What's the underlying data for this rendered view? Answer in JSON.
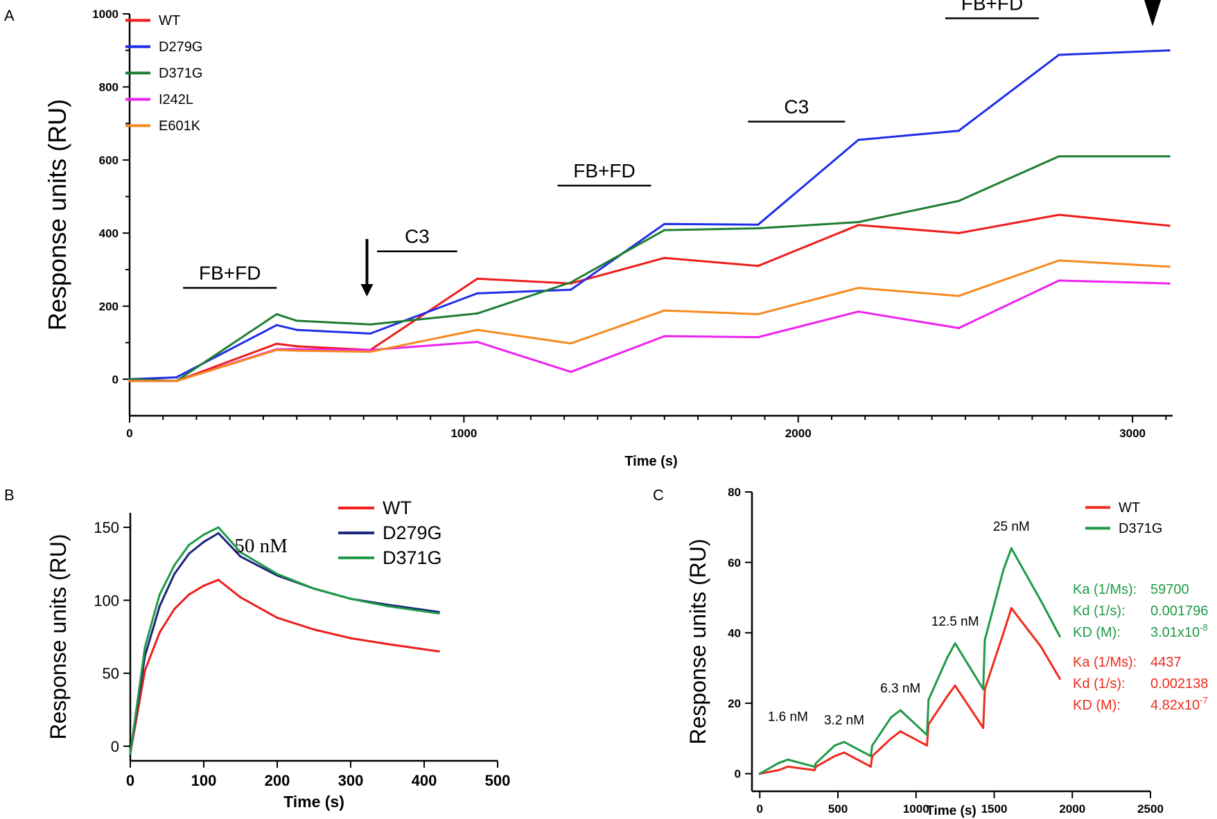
{
  "panels": [
    {
      "id": "A",
      "letter": "A",
      "chart_data": {
        "type": "line",
        "title": "",
        "xlabel": "Time (s)",
        "ylabel": "Response units (RU)",
        "xlim": [
          0,
          3120
        ],
        "ylim": [
          -100,
          1000
        ],
        "xticks": [
          0,
          1000,
          2000,
          3000
        ],
        "yticks": [
          0,
          200,
          400,
          600,
          800,
          1000
        ],
        "legend": [
          "WT",
          "D279G",
          "D371G",
          "I242L",
          "E601K"
        ],
        "series": [
          {
            "name": "WT",
            "color": "#ee1c1c",
            "x": [
              0,
              140,
              440,
              500,
              720,
              1040,
              1320,
              1600,
              1880,
              2180,
              2480,
              2780,
              3110
            ],
            "y": [
              -5,
              -5,
              97,
              90,
              80,
              275,
              262,
              332,
              310,
              422,
              400,
              450,
              420
            ]
          },
          {
            "name": "D279G",
            "color": "#1e2de6",
            "x": [
              0,
              140,
              440,
              500,
              720,
              1040,
              1320,
              1600,
              1880,
              2180,
              2480,
              2780,
              3110
            ],
            "y": [
              0,
              5,
              148,
              135,
              125,
              235,
              245,
              425,
              423,
              655,
              680,
              888,
              900
            ]
          },
          {
            "name": "D371G",
            "color": "#1e7d32",
            "x": [
              0,
              140,
              440,
              500,
              720,
              1040,
              1320,
              1600,
              1880,
              2180,
              2480,
              2780,
              3110
            ],
            "y": [
              0,
              -5,
              178,
              160,
              150,
              180,
              265,
              408,
              413,
              430,
              488,
              610,
              610
            ]
          },
          {
            "name": "I242L",
            "color": "#ee22ee",
            "x": [
              0,
              140,
              440,
              500,
              720,
              1040,
              1320,
              1600,
              1880,
              2180,
              2480,
              2780,
              3110
            ],
            "y": [
              -5,
              -5,
              82,
              82,
              80,
              102,
              20,
              118,
              115,
              185,
              140,
              270,
              262
            ]
          },
          {
            "name": "E601K",
            "color": "#f58a1f",
            "x": [
              0,
              140,
              440,
              500,
              720,
              1040,
              1320,
              1600,
              1880,
              2180,
              2480,
              2780,
              3110
            ],
            "y": [
              -5,
              -5,
              80,
              78,
              75,
              135,
              98,
              188,
              178,
              250,
              228,
              325,
              308
            ]
          }
        ],
        "annotations": [
          {
            "text": "FB+FD",
            "x1": 160,
            "x2": 440,
            "y": 250
          },
          {
            "text": "C3",
            "x1": 740,
            "x2": 980,
            "y": 350
          },
          {
            "text": "FB+FD",
            "x1": 1280,
            "x2": 1560,
            "y": 530
          },
          {
            "text": "C3",
            "x1": 1850,
            "x2": 2140,
            "y": 705
          },
          {
            "text": "FB+FD",
            "x1": 2440,
            "x2": 2720,
            "y": 988
          }
        ]
      }
    },
    {
      "id": "B",
      "letter": "B",
      "chart_data": {
        "type": "line",
        "title": "",
        "xlabel": "Time (s)",
        "ylabel": "Response units (RU)",
        "xlim": [
          0,
          500
        ],
        "ylim": [
          -10,
          160
        ],
        "xticks": [
          0,
          100,
          200,
          300,
          400,
          500
        ],
        "yticks": [
          0,
          50,
          100,
          150
        ],
        "legend": [
          "WT",
          "D279G",
          "D371G"
        ],
        "annotation": "50 nM",
        "series": [
          {
            "name": "WT",
            "color": "#ee1c1c",
            "x": [
              0,
              20,
              40,
              60,
              80,
              100,
              120,
              150,
              200,
              250,
              300,
              350,
              420
            ],
            "y": [
              -5,
              52,
              78,
              94,
              104,
              110,
              114,
              102,
              88,
              80,
              74,
              70,
              65
            ]
          },
          {
            "name": "D279G",
            "color": "#1a237e",
            "x": [
              0,
              20,
              40,
              60,
              80,
              100,
              120,
              150,
              200,
              250,
              300,
              350,
              420
            ],
            "y": [
              -5,
              62,
              96,
              118,
              132,
              140,
              146,
              130,
              117,
              108,
              101,
              97,
              92
            ]
          },
          {
            "name": "D371G",
            "color": "#1e9a47",
            "x": [
              0,
              20,
              40,
              60,
              80,
              100,
              120,
              150,
              200,
              250,
              300,
              350,
              420
            ],
            "y": [
              -5,
              68,
              104,
              124,
              138,
              145,
              150,
              133,
              118,
              108,
              101,
              96,
              91
            ]
          }
        ]
      }
    },
    {
      "id": "C",
      "letter": "C",
      "chart_data": {
        "type": "line",
        "title": "",
        "xlabel": "Time (s)",
        "ylabel": "Response units (RU)",
        "xlim": [
          -50,
          2500
        ],
        "ylim": [
          -5,
          80
        ],
        "xticks": [
          0,
          500,
          1000,
          1500,
          2000,
          2500
        ],
        "yticks": [
          0,
          20,
          40,
          60,
          80
        ],
        "legend": [
          "WT",
          "D371G"
        ],
        "concentrations": [
          {
            "text": "1.6 nM",
            "x": 180,
            "y": 15
          },
          {
            "text": "3.2 nM",
            "x": 540,
            "y": 14
          },
          {
            "text": "6.3 nM",
            "x": 900,
            "y": 23
          },
          {
            "text": "12.5 nM",
            "x": 1250,
            "y": 42
          },
          {
            "text": "25 nM",
            "x": 1610,
            "y": 69
          }
        ],
        "kinetics": [
          {
            "series": "D371G",
            "color": "#1e9a47",
            "rows": [
              {
                "label": "Ka (1/Ms):",
                "value": "59700",
                "exp": ""
              },
              {
                "label": "Kd (1/s):",
                "value": "0.001796",
                "exp": ""
              },
              {
                "label": "KD (M):",
                "value": "3.01x10",
                "exp": "-8"
              }
            ]
          },
          {
            "series": "WT",
            "color": "#ee2b1c",
            "rows": [
              {
                "label": "Ka (1/Ms):",
                "value": "4437",
                "exp": ""
              },
              {
                "label": "Kd (1/s):",
                "value": "0.002138",
                "exp": ""
              },
              {
                "label": "KD (M):",
                "value": "4.82x10",
                "exp": "-7"
              }
            ]
          }
        ],
        "series": [
          {
            "name": "WT",
            "color": "#ee2b1c",
            "x": [
              0,
              120,
              180,
              350,
              360,
              480,
              540,
              710,
              720,
              840,
              900,
              1070,
              1080,
              1200,
              1250,
              1430,
              1440,
              1560,
              1610,
              1800,
              1920
            ],
            "y": [
              0,
              1,
              2,
              1,
              2,
              5,
              6,
              2,
              5,
              10,
              12,
              8,
              14,
              22,
              25,
              13,
              24,
              40,
              47,
              36,
              27
            ]
          },
          {
            "name": "D371G",
            "color": "#1e9a47",
            "x": [
              0,
              120,
              180,
              350,
              360,
              480,
              540,
              710,
              720,
              840,
              900,
              1070,
              1080,
              1200,
              1250,
              1430,
              1440,
              1560,
              1610,
              1800,
              1920
            ],
            "y": [
              0,
              3,
              4,
              2,
              3,
              8,
              9,
              5,
              8,
              16,
              18,
              11,
              21,
              33,
              37,
              24,
              38,
              58,
              64,
              49,
              39
            ]
          }
        ]
      }
    }
  ]
}
